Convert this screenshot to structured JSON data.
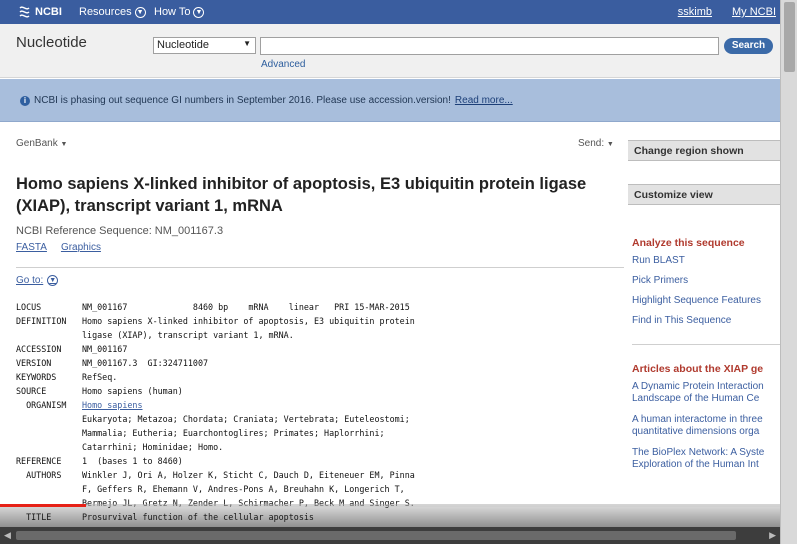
{
  "topbar": {
    "logo": "NCBI",
    "menu1": "Resources",
    "menu2": "How To",
    "user": "sskimb",
    "my_ncbi": "My NCBI"
  },
  "search": {
    "db_name": "Nucleotide",
    "db_select": "Nucleotide",
    "query": "",
    "button": "Search",
    "advanced": "Advanced"
  },
  "banner": {
    "text": "NCBI is phasing out sequence GI numbers in September 2016. Please use accession.version!",
    "more": "Read more..."
  },
  "record": {
    "format": "GenBank",
    "send": "Send:",
    "title": "Homo sapiens X-linked inhibitor of apoptosis, E3 ubiquitin protein ligase (XIAP), transcript variant 1, mRNA",
    "refseq": "NCBI Reference Sequence: NM_001167.3",
    "fasta": "FASTA",
    "graphics": "Graphics",
    "goto": "Go to:"
  },
  "flatfile": [
    {
      "k": "LOCUS",
      "v": "NM_001167             8460 bp    mRNA    linear   PRI 15-MAR-2015"
    },
    {
      "k": "DEFINITION",
      "v": "Homo sapiens X-linked inhibitor of apoptosis, E3 ubiquitin protein"
    },
    {
      "k": "",
      "v": "ligase (XIAP), transcript variant 1, mRNA."
    },
    {
      "k": "ACCESSION",
      "v": "NM_001167"
    },
    {
      "k": "VERSION",
      "v": "NM_001167.3  GI:324711007"
    },
    {
      "k": "KEYWORDS",
      "v": "RefSeq."
    },
    {
      "k": "SOURCE",
      "v": "Homo sapiens (human)"
    },
    {
      "k": "  ORGANISM",
      "v": "Homo sapiens",
      "link": true
    },
    {
      "k": "",
      "v": "Eukaryota; Metazoa; Chordata; Craniata; Vertebrata; Euteleostomi;"
    },
    {
      "k": "",
      "v": "Mammalia; Eutheria; Euarchontoglires; Primates; Haplorrhini;"
    },
    {
      "k": "",
      "v": "Catarrhini; Hominidae; Homo."
    },
    {
      "k": "REFERENCE",
      "v": "1  (bases 1 to 8460)"
    },
    {
      "k": "  AUTHORS",
      "v": "Winkler J, Ori A, Holzer K, Sticht C, Dauch D, Eiteneuer EM, Pinna"
    },
    {
      "k": "",
      "v": "F, Geffers R, Ehemann V, Andres-Pons A, Breuhahn K, Longerich T,"
    },
    {
      "k": "",
      "v": "Bermejo JL, Gretz N, Zender L, Schirmacher P, Beck M and Singer S."
    },
    {
      "k": "  TITLE",
      "v": "Prosurvival function of the cellular apoptosis"
    }
  ],
  "sidebar": {
    "change_region": "Change region shown",
    "customize": "Customize view",
    "analyze_heading": "Analyze this sequence",
    "analyze_items": [
      "Run BLAST",
      "Pick Primers",
      "Highlight Sequence Features",
      "Find in This Sequence"
    ],
    "articles_heading": "Articles about the XIAP ge",
    "articles": [
      {
        "l1": "A Dynamic Protein Interaction",
        "l2": "Landscape of the Human Ce"
      },
      {
        "l1": "A human interactome in three",
        "l2": "quantitative dimensions orga"
      },
      {
        "l1": "The BioPlex Network: A Syste",
        "l2": "Exploration of the Human Int"
      }
    ]
  },
  "video": {
    "progress_fraction": 0.11
  }
}
